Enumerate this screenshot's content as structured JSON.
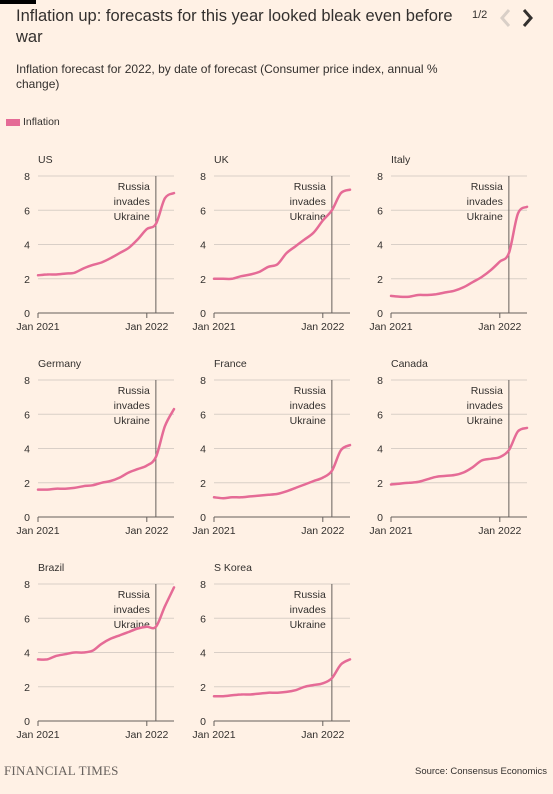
{
  "header": {
    "title": "Inflation up: forecasts for this year looked bleak even before war",
    "subtitle": "Inflation forecast for 2022, by date of forecast (Consumer price index, annual % change)",
    "pager": "1/2",
    "prev_icon": "chevron-left-icon",
    "next_icon": "chevron-right-icon"
  },
  "legend": {
    "label": "Inflation",
    "color": "#e56b96"
  },
  "footer": {
    "brand": "FINANCIAL TIMES",
    "source": "Source: Consensus Economics"
  },
  "chart_data": [
    {
      "type": "line",
      "title": "US",
      "x": [
        "2021-01",
        "2021-02",
        "2021-03",
        "2021-04",
        "2021-05",
        "2021-06",
        "2021-07",
        "2021-08",
        "2021-09",
        "2021-10",
        "2021-11",
        "2021-12",
        "2022-01",
        "2022-02",
        "2022-03",
        "2022-04"
      ],
      "y_ticks": [
        0,
        2,
        4,
        6,
        8
      ],
      "x_ticks": [
        "Jan 2021",
        "Jan 2022"
      ],
      "ylim": [
        0,
        8
      ],
      "series": [
        {
          "values": [
            2.2,
            2.25,
            2.25,
            2.3,
            2.35,
            2.6,
            2.8,
            2.95,
            3.2,
            3.5,
            3.8,
            4.3,
            4.9,
            5.2,
            6.7,
            7.0
          ]
        }
      ],
      "annotation": {
        "text": [
          "Russia",
          "invades",
          "Ukraine"
        ],
        "date": "2022-02"
      }
    },
    {
      "type": "line",
      "title": "UK",
      "x": [
        "2021-01",
        "2021-02",
        "2021-03",
        "2021-04",
        "2021-05",
        "2021-06",
        "2021-07",
        "2021-08",
        "2021-09",
        "2021-10",
        "2021-11",
        "2021-12",
        "2022-01",
        "2022-02",
        "2022-03",
        "2022-04"
      ],
      "y_ticks": [
        0,
        2,
        4,
        6,
        8
      ],
      "x_ticks": [
        "Jan 2021",
        "Jan 2022"
      ],
      "ylim": [
        0,
        8
      ],
      "series": [
        {
          "values": [
            2.0,
            2.0,
            2.0,
            2.15,
            2.25,
            2.4,
            2.7,
            2.85,
            3.5,
            3.9,
            4.3,
            4.7,
            5.4,
            6.0,
            7.0,
            7.2
          ]
        }
      ],
      "annotation": {
        "text": [
          "Russia",
          "invades",
          "Ukraine"
        ],
        "date": "2022-02"
      }
    },
    {
      "type": "line",
      "title": "Italy",
      "x": [
        "2021-01",
        "2021-02",
        "2021-03",
        "2021-04",
        "2021-05",
        "2021-06",
        "2021-07",
        "2021-08",
        "2021-09",
        "2021-10",
        "2021-11",
        "2021-12",
        "2022-01",
        "2022-02",
        "2022-03",
        "2022-04"
      ],
      "y_ticks": [
        0,
        2,
        4,
        6,
        8
      ],
      "x_ticks": [
        "Jan 2021",
        "Jan 2022"
      ],
      "ylim": [
        0,
        8
      ],
      "series": [
        {
          "values": [
            1.0,
            0.95,
            0.95,
            1.05,
            1.05,
            1.1,
            1.2,
            1.3,
            1.5,
            1.8,
            2.1,
            2.5,
            3.0,
            3.5,
            5.8,
            6.2
          ]
        }
      ],
      "annotation": {
        "text": [
          "Russia",
          "invades",
          "Ukraine"
        ],
        "date": "2022-02"
      }
    },
    {
      "type": "line",
      "title": "Germany",
      "x": [
        "2021-01",
        "2021-02",
        "2021-03",
        "2021-04",
        "2021-05",
        "2021-06",
        "2021-07",
        "2021-08",
        "2021-09",
        "2021-10",
        "2021-11",
        "2021-12",
        "2022-01",
        "2022-02",
        "2022-03",
        "2022-04"
      ],
      "y_ticks": [
        0,
        2,
        4,
        6,
        8
      ],
      "x_ticks": [
        "Jan 2021",
        "Jan 2022"
      ],
      "ylim": [
        0,
        8
      ],
      "series": [
        {
          "values": [
            1.6,
            1.6,
            1.65,
            1.65,
            1.7,
            1.8,
            1.85,
            2.0,
            2.1,
            2.3,
            2.6,
            2.8,
            3.0,
            3.5,
            5.3,
            6.3
          ]
        }
      ],
      "annotation": {
        "text": [
          "Russia",
          "invades",
          "Ukraine"
        ],
        "date": "2022-02"
      }
    },
    {
      "type": "line",
      "title": "France",
      "x": [
        "2021-01",
        "2021-02",
        "2021-03",
        "2021-04",
        "2021-05",
        "2021-06",
        "2021-07",
        "2021-08",
        "2021-09",
        "2021-10",
        "2021-11",
        "2021-12",
        "2022-01",
        "2022-02",
        "2022-03",
        "2022-04"
      ],
      "y_ticks": [
        0,
        2,
        4,
        6,
        8
      ],
      "x_ticks": [
        "Jan 2021",
        "Jan 2022"
      ],
      "ylim": [
        0,
        8
      ],
      "series": [
        {
          "values": [
            1.15,
            1.1,
            1.15,
            1.15,
            1.2,
            1.25,
            1.3,
            1.35,
            1.5,
            1.7,
            1.9,
            2.1,
            2.3,
            2.7,
            3.9,
            4.2
          ]
        }
      ],
      "annotation": {
        "text": [
          "Russia",
          "invades",
          "Ukraine"
        ],
        "date": "2022-02"
      }
    },
    {
      "type": "line",
      "title": "Canada",
      "x": [
        "2021-01",
        "2021-02",
        "2021-03",
        "2021-04",
        "2021-05",
        "2021-06",
        "2021-07",
        "2021-08",
        "2021-09",
        "2021-10",
        "2021-11",
        "2021-12",
        "2022-01",
        "2022-02",
        "2022-03",
        "2022-04"
      ],
      "y_ticks": [
        0,
        2,
        4,
        6,
        8
      ],
      "x_ticks": [
        "Jan 2021",
        "Jan 2022"
      ],
      "ylim": [
        0,
        8
      ],
      "series": [
        {
          "values": [
            1.9,
            1.95,
            2.0,
            2.05,
            2.2,
            2.35,
            2.4,
            2.45,
            2.6,
            2.9,
            3.3,
            3.4,
            3.5,
            3.9,
            5.0,
            5.2
          ]
        }
      ],
      "annotation": {
        "text": [
          "Russia",
          "invades",
          "Ukraine"
        ],
        "date": "2022-02"
      }
    },
    {
      "type": "line",
      "title": "Brazil",
      "x": [
        "2021-01",
        "2021-02",
        "2021-03",
        "2021-04",
        "2021-05",
        "2021-06",
        "2021-07",
        "2021-08",
        "2021-09",
        "2021-10",
        "2021-11",
        "2021-12",
        "2022-01",
        "2022-02",
        "2022-03",
        "2022-04"
      ],
      "y_ticks": [
        0,
        2,
        4,
        6,
        8
      ],
      "x_ticks": [
        "Jan 2021",
        "Jan 2022"
      ],
      "ylim": [
        0,
        8
      ],
      "series": [
        {
          "values": [
            3.6,
            3.6,
            3.8,
            3.9,
            4.0,
            4.0,
            4.1,
            4.5,
            4.8,
            5.0,
            5.2,
            5.4,
            5.5,
            5.5,
            6.7,
            7.8
          ]
        }
      ],
      "annotation": {
        "text": [
          "Russia",
          "invades",
          "Ukraine"
        ],
        "date": "2022-02"
      }
    },
    {
      "type": "line",
      "title": "S Korea",
      "x": [
        "2021-01",
        "2021-02",
        "2021-03",
        "2021-04",
        "2021-05",
        "2021-06",
        "2021-07",
        "2021-08",
        "2021-09",
        "2021-10",
        "2021-11",
        "2021-12",
        "2022-01",
        "2022-02",
        "2022-03",
        "2022-04"
      ],
      "y_ticks": [
        0,
        2,
        4,
        6,
        8
      ],
      "x_ticks": [
        "Jan 2021",
        "Jan 2022"
      ],
      "ylim": [
        0,
        8
      ],
      "series": [
        {
          "values": [
            1.45,
            1.45,
            1.5,
            1.55,
            1.55,
            1.6,
            1.65,
            1.65,
            1.7,
            1.8,
            2.0,
            2.1,
            2.2,
            2.5,
            3.3,
            3.6
          ]
        }
      ],
      "annotation": {
        "text": [
          "Russia",
          "invades",
          "Ukraine"
        ],
        "date": "2022-02"
      }
    }
  ]
}
